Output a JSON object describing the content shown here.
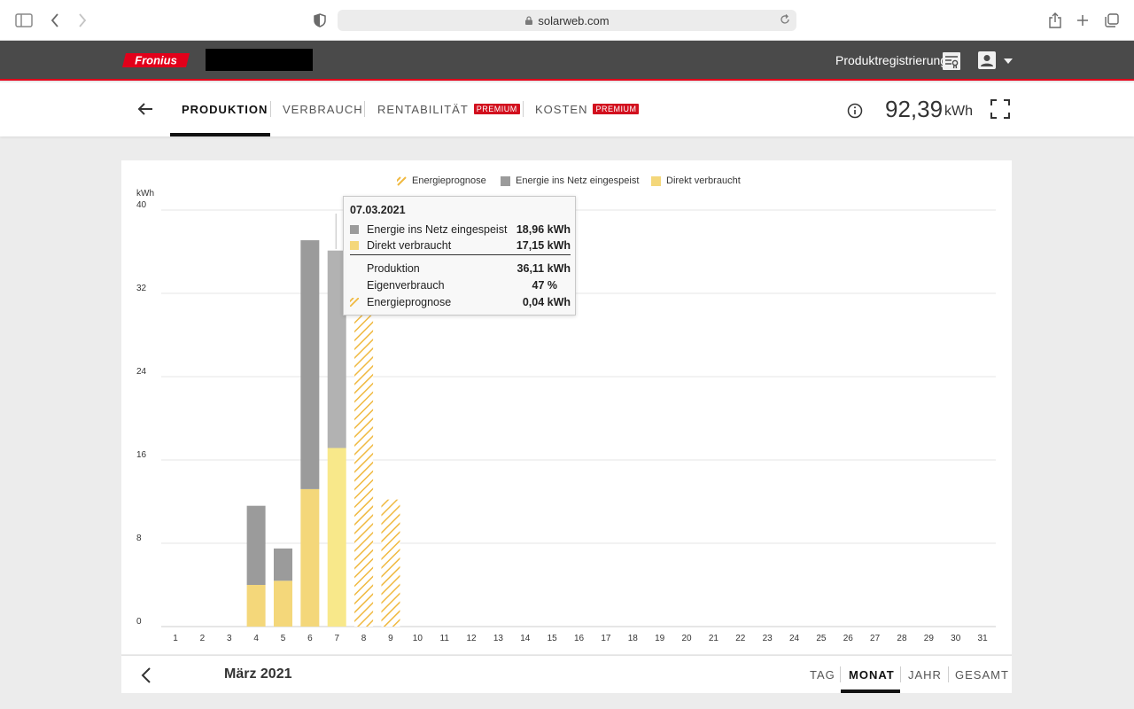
{
  "browser": {
    "url": "solarweb.com"
  },
  "header": {
    "logo_text": "Fronius",
    "product_registration_label": "Produktregistrierung"
  },
  "nav": {
    "tabs": [
      {
        "label": "PRODUKTION",
        "active": true,
        "premium": false
      },
      {
        "label": "VERBRAUCH",
        "active": false,
        "premium": false
      },
      {
        "label": "RENTABILITÄT",
        "active": false,
        "premium": true
      },
      {
        "label": "KOSTEN",
        "active": false,
        "premium": true
      }
    ],
    "premium_badge": "PREMIUM",
    "total_value": "92,39",
    "total_unit": "kWh"
  },
  "colors": {
    "grid_feed": "#9b9b9b",
    "grid_feed_highlight": "#b2b2b2",
    "direct": "#f4d77a",
    "direct_highlight": "#f8e88a",
    "forecast": "#f0b940",
    "brand_red": "#e2001a"
  },
  "chart_data": {
    "type": "bar",
    "stacked": true,
    "ylabel": "kWh",
    "ylim": [
      0,
      40
    ],
    "yticks": [
      0,
      8,
      16,
      24,
      32,
      40
    ],
    "legend_position": "top-center",
    "categories": [
      "1",
      "2",
      "3",
      "4",
      "5",
      "6",
      "7",
      "8",
      "9",
      "10",
      "11",
      "12",
      "13",
      "14",
      "15",
      "16",
      "17",
      "18",
      "19",
      "20",
      "21",
      "22",
      "23",
      "24",
      "25",
      "26",
      "27",
      "28",
      "29",
      "30",
      "31"
    ],
    "series": [
      {
        "name": "Direkt verbraucht",
        "values": [
          0,
          0,
          0,
          4,
          4.4,
          13.2,
          17.15,
          0,
          0,
          0,
          0,
          0,
          0,
          0,
          0,
          0,
          0,
          0,
          0,
          0,
          0,
          0,
          0,
          0,
          0,
          0,
          0,
          0,
          0,
          0,
          0
        ]
      },
      {
        "name": "Energie ins Netz eingespeist",
        "values": [
          0,
          0,
          0,
          7.6,
          3.1,
          23.9,
          18.96,
          0,
          0,
          0,
          0,
          0,
          0,
          0,
          0,
          0,
          0,
          0,
          0,
          0,
          0,
          0,
          0,
          0,
          0,
          0,
          0,
          0,
          0,
          0,
          0
        ]
      },
      {
        "name": "Energieprognose",
        "values": [
          0,
          0,
          0,
          0,
          0,
          0,
          0.04,
          30.2,
          12.2,
          0,
          0,
          0,
          0,
          0,
          0,
          0,
          0,
          0,
          0,
          0,
          0,
          0,
          0,
          0,
          0,
          0,
          0,
          0,
          0,
          0,
          0
        ]
      }
    ],
    "highlighted_category": "7"
  },
  "tooltip": {
    "date": "07.03.2021",
    "rows": [
      {
        "label": "Energie ins Netz eingespeist",
        "value": "18,96 kWh"
      },
      {
        "label": "Direkt verbraucht",
        "value": "17,15 kWh"
      },
      {
        "label": "Produktion",
        "value": "36,11 kWh"
      },
      {
        "label": "Eigenverbrauch",
        "value": "47 %"
      },
      {
        "label": "Energieprognose",
        "value": "0,04 kWh"
      }
    ]
  },
  "footer": {
    "period_label": "März 2021",
    "period_tabs": [
      {
        "label": "TAG",
        "active": false
      },
      {
        "label": "MONAT",
        "active": true
      },
      {
        "label": "JAHR",
        "active": false
      },
      {
        "label": "GESAMT",
        "active": false
      }
    ]
  }
}
